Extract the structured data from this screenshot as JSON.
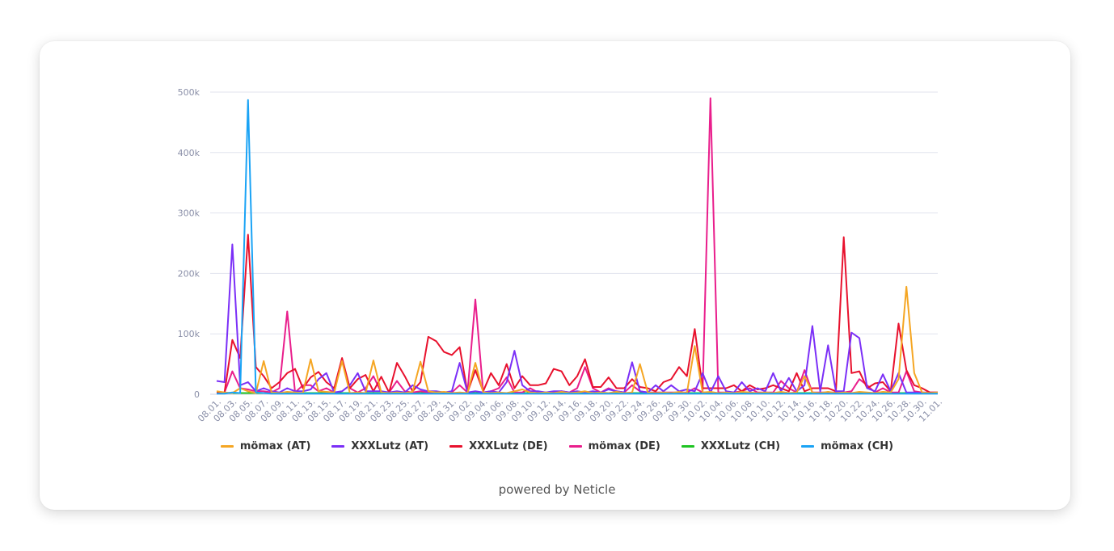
{
  "footer": "powered by Neticle",
  "chart_data": {
    "type": "line",
    "title": "",
    "xlabel": "",
    "ylabel": "",
    "ylim": [
      0,
      500000
    ],
    "yticks": [
      0,
      100000,
      200000,
      300000,
      400000,
      500000
    ],
    "ytick_labels": [
      "0",
      "100k",
      "200k",
      "300k",
      "400k",
      "500k"
    ],
    "grid": true,
    "legend_position": "bottom",
    "x": [
      "08.01.",
      "08.02.",
      "08.03.",
      "08.04.",
      "08.05.",
      "08.06.",
      "08.07.",
      "08.08.",
      "08.09.",
      "08.10.",
      "08.11.",
      "08.12.",
      "08.13.",
      "08.14.",
      "08.15.",
      "08.16.",
      "08.17.",
      "08.18.",
      "08.19.",
      "08.20.",
      "08.21.",
      "08.22.",
      "08.23.",
      "08.24.",
      "08.25.",
      "08.26.",
      "08.27.",
      "08.28.",
      "08.29.",
      "08.30.",
      "08.31.",
      "09.01.",
      "09.02.",
      "09.03.",
      "09.04.",
      "09.05.",
      "09.06.",
      "09.07.",
      "09.08.",
      "09.09.",
      "09.10.",
      "09.11.",
      "09.12.",
      "09.13.",
      "09.14.",
      "09.15.",
      "09.16.",
      "09.17.",
      "09.18.",
      "09.19.",
      "09.20.",
      "09.21.",
      "09.22.",
      "09.23.",
      "09.24.",
      "09.25.",
      "09.26.",
      "09.27.",
      "09.28.",
      "09.29.",
      "09.30.",
      "10.01.",
      "10.02.",
      "10.03.",
      "10.04.",
      "10.05.",
      "10.06.",
      "10.07.",
      "10.08.",
      "10.09.",
      "10.10.",
      "10.11.",
      "10.12.",
      "10.13.",
      "10.14.",
      "10.15.",
      "10.16.",
      "10.17.",
      "10.18.",
      "10.19.",
      "10.20.",
      "10.21.",
      "10.22.",
      "10.23.",
      "10.24.",
      "10.25.",
      "10.26.",
      "10.27.",
      "10.28.",
      "10.29.",
      "10.30.",
      "10.31.",
      "11.01."
    ],
    "xtick_labels": [
      "08.01.",
      "08.03.",
      "08.05.",
      "08.07.",
      "08.09.",
      "08.11.",
      "08.13.",
      "08.15.",
      "08.17.",
      "08.19.",
      "08.21.",
      "08.23.",
      "08.25.",
      "08.27.",
      "08.29.",
      "08.31.",
      "09.02.",
      "09.04.",
      "09.06.",
      "09.08.",
      "09.10.",
      "09.12.",
      "09.14.",
      "09.16.",
      "09.18.",
      "09.20.",
      "09.22.",
      "09.24.",
      "09.26.",
      "09.28.",
      "09.30.",
      "10.02.",
      "10.04.",
      "10.06.",
      "10.08.",
      "10.10.",
      "10.12.",
      "10.14.",
      "10.16.",
      "10.18.",
      "10.20.",
      "10.22.",
      "10.24.",
      "10.26.",
      "10.28.",
      "10.30.",
      "11.01."
    ],
    "series": [
      {
        "name": "mömax (AT)",
        "color": "#f5a623",
        "values": [
          5000,
          3000,
          2000,
          10000,
          5000,
          2000,
          55000,
          3000,
          2000,
          4000,
          3000,
          2000,
          58000,
          5000,
          4000,
          3000,
          55000,
          2000,
          3000,
          2000,
          56000,
          3000,
          2000,
          3000,
          2000,
          4000,
          54000,
          5000,
          3000,
          4000,
          2000,
          3000,
          2000,
          52000,
          3000,
          2000,
          3000,
          2000,
          5000,
          8000,
          3000,
          2000,
          3000,
          2000,
          4000,
          2000,
          3000,
          5000,
          2000,
          3000,
          2000,
          4000,
          2000,
          3000,
          50000,
          3000,
          2000,
          3000,
          2000,
          4000,
          2000,
          80000,
          3000,
          4000,
          2000,
          3000,
          2000,
          4000,
          3000,
          2000,
          3000,
          2000,
          4000,
          2000,
          3000,
          30000,
          3000,
          2000,
          4000,
          2000,
          3000,
          2000,
          4000,
          3000,
          2000,
          4000,
          3000,
          25000,
          178000,
          35000,
          3000,
          2000,
          3000
        ]
      },
      {
        "name": "XXXLutz (AT)",
        "color": "#7b2ff7",
        "values": [
          22000,
          20000,
          248000,
          15000,
          20000,
          5000,
          10000,
          5000,
          3000,
          10000,
          5000,
          5000,
          8000,
          25000,
          35000,
          3000,
          5000,
          15000,
          35000,
          5000,
          5000,
          5000,
          3000,
          5000,
          3000,
          15000,
          8000,
          5000,
          5000,
          3000,
          5000,
          52000,
          3000,
          5000,
          3000,
          5000,
          3000,
          20000,
          72000,
          15000,
          5000,
          5000,
          3000,
          5000,
          5000,
          3000,
          5000,
          3000,
          5000,
          3000,
          8000,
          5000,
          3000,
          53000,
          5000,
          3000,
          15000,
          5000,
          15000,
          5000,
          8000,
          5000,
          35000,
          3000,
          30000,
          5000,
          3000,
          20000,
          5000,
          10000,
          5000,
          35000,
          5000,
          27000,
          5000,
          15000,
          113000,
          5000,
          81000,
          5000,
          5000,
          102000,
          93000,
          10000,
          5000,
          33000,
          5000,
          35000,
          3000,
          3000,
          2000,
          2000,
          2000
        ]
      },
      {
        "name": "XXXLutz (DE)",
        "color": "#e8112d",
        "values": [
          3000,
          3000,
          90000,
          60000,
          264000,
          45000,
          30000,
          10000,
          20000,
          35000,
          42000,
          10000,
          28000,
          37000,
          20000,
          10000,
          60000,
          10000,
          25000,
          32000,
          5000,
          29000,
          3000,
          52000,
          30000,
          5000,
          20000,
          95000,
          88000,
          70000,
          65000,
          78000,
          3000,
          40000,
          5000,
          35000,
          15000,
          50000,
          10000,
          30000,
          15000,
          15000,
          18000,
          42000,
          38000,
          15000,
          30000,
          58000,
          12000,
          12000,
          28000,
          10000,
          10000,
          25000,
          12000,
          10000,
          5000,
          20000,
          25000,
          45000,
          30000,
          108000,
          10000,
          10000,
          10000,
          10000,
          15000,
          5000,
          15000,
          8000,
          10000,
          15000,
          10000,
          5000,
          35000,
          5000,
          10000,
          10000,
          10000,
          5000,
          260000,
          35000,
          38000,
          10000,
          18000,
          20000,
          5000,
          117000,
          40000,
          15000,
          10000,
          3000,
          3000
        ]
      },
      {
        "name": "mömax (DE)",
        "color": "#e91e8c",
        "values": [
          3000,
          3000,
          38000,
          10000,
          8000,
          5000,
          5000,
          3000,
          10000,
          137000,
          3000,
          15000,
          15000,
          5000,
          10000,
          3000,
          58000,
          10000,
          3000,
          10000,
          30000,
          3000,
          3000,
          22000,
          5000,
          3000,
          5000,
          3000,
          3000,
          3000,
          3000,
          15000,
          3000,
          157000,
          3000,
          5000,
          10000,
          28000,
          3000,
          3000,
          10000,
          3000,
          3000,
          3000,
          5000,
          3000,
          10000,
          45000,
          10000,
          3000,
          10000,
          5000,
          3000,
          15000,
          5000,
          3000,
          3000,
          3000,
          3000,
          3000,
          3000,
          10000,
          3000,
          490000,
          3000,
          3000,
          3000,
          5000,
          10000,
          3000,
          3000,
          3000,
          22000,
          10000,
          3000,
          40000,
          3000,
          3000,
          3000,
          3000,
          3000,
          5000,
          25000,
          15000,
          3000,
          10000,
          3000,
          3000,
          38000,
          5000,
          3000,
          3000,
          3000
        ]
      },
      {
        "name": "XXXLutz (CH)",
        "color": "#1ec422",
        "values": [
          2000,
          2000,
          2000,
          2000,
          2000,
          2000,
          2000,
          2000,
          2000,
          2000,
          2000,
          2000,
          2000,
          2000,
          2000,
          2000,
          2000,
          2000,
          2000,
          2000,
          2000,
          2000,
          2000,
          2000,
          2000,
          2000,
          2000,
          2000,
          2000,
          2000,
          2000,
          2000,
          2000,
          2000,
          2000,
          2000,
          2000,
          2000,
          2000,
          2000,
          2000,
          2000,
          2000,
          2000,
          2000,
          2000,
          2000,
          2000,
          2000,
          2000,
          2000,
          2000,
          2000,
          2000,
          2000,
          2000,
          2000,
          2000,
          2000,
          2000,
          2000,
          2000,
          2000,
          2000,
          2000,
          2000,
          2000,
          2000,
          2000,
          2000,
          2000,
          2000,
          2000,
          2000,
          2000,
          2000,
          2000,
          2000,
          2000,
          2000,
          2000,
          2000,
          2000,
          2000,
          2000,
          2000,
          2000,
          2000,
          2000,
          2000,
          2000,
          2000,
          2000
        ]
      },
      {
        "name": "mömax (CH)",
        "color": "#1aa3f5",
        "values": [
          1000,
          1000,
          3000,
          2000,
          487000,
          3000,
          2000,
          1000,
          1000,
          1000,
          1000,
          1000,
          1000,
          1000,
          1000,
          1000,
          1000,
          1000,
          1000,
          1000,
          1000,
          1000,
          1000,
          1000,
          1000,
          1000,
          1000,
          1000,
          1000,
          1000,
          1000,
          1000,
          1000,
          1000,
          1000,
          1000,
          1000,
          1000,
          1000,
          1000,
          1000,
          1000,
          1000,
          1000,
          1000,
          1000,
          1000,
          1000,
          1000,
          1000,
          1000,
          1000,
          1000,
          1000,
          1000,
          1000,
          1000,
          1000,
          1000,
          1000,
          1000,
          1000,
          1000,
          1000,
          1000,
          1000,
          1000,
          1000,
          1000,
          1000,
          1000,
          1000,
          1000,
          1000,
          1000,
          1000,
          1000,
          1000,
          1000,
          1000,
          1000,
          1000,
          1000,
          1000,
          1000,
          1000,
          1000,
          1000,
          1000,
          1000,
          1000,
          1000,
          1000
        ]
      }
    ]
  }
}
